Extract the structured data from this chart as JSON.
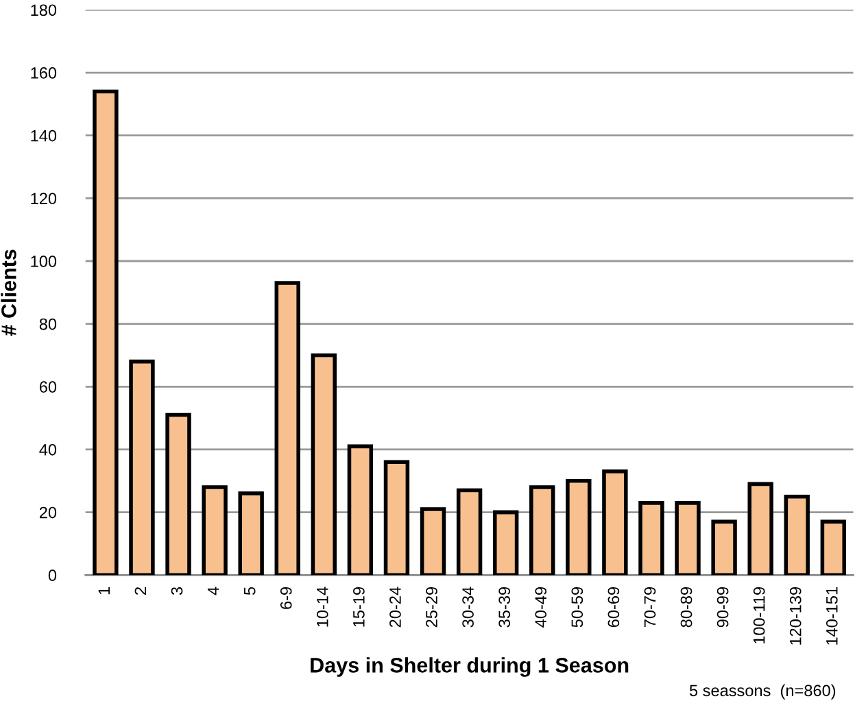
{
  "chart_data": {
    "type": "bar",
    "xlabel": "Days in Shelter during 1 Season",
    "ylabel": "# Clients",
    "categories": [
      "1",
      "2",
      "3",
      "4",
      "5",
      "6-9",
      "10-14",
      "15-19",
      "20-24",
      "25-29",
      "30-34",
      "35-39",
      "40-49",
      "50-59",
      "60-69",
      "70-79",
      "80-89",
      "90-99",
      "100-119",
      "120-139",
      "140-151"
    ],
    "values": [
      154,
      68,
      51,
      28,
      26,
      93,
      70,
      41,
      36,
      21,
      27,
      20,
      28,
      30,
      33,
      23,
      23,
      17,
      29,
      25,
      17
    ],
    "color": "#f9c08f",
    "ylim": [
      0,
      180
    ],
    "yticks": [
      0,
      20,
      40,
      60,
      80,
      100,
      120,
      140,
      160,
      180
    ],
    "grid": "y",
    "annotations": [
      "5 seassons  (n=860)"
    ]
  }
}
